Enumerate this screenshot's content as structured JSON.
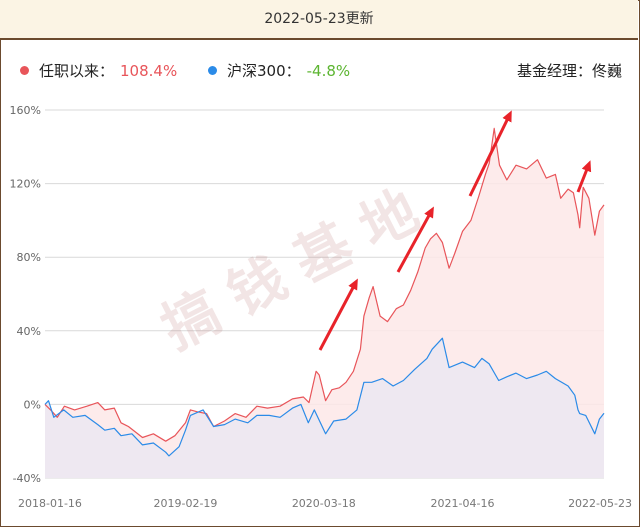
{
  "header": {
    "date_label": "2022-05-23更新"
  },
  "legend": {
    "items": [
      {
        "name": "任职以来：",
        "value": "108.4%",
        "dot_color": "#e8555a",
        "value_color": "#e8555a"
      },
      {
        "name": "沪深300：",
        "value": "-4.8%",
        "dot_color": "#2b8be8",
        "value_color": "#5cb531"
      }
    ]
  },
  "manager": {
    "label": "基金经理：",
    "name": "佟巍"
  },
  "watermark": {
    "text": "搞钱基地"
  },
  "chart_data": {
    "type": "line",
    "x_ticks": [
      "2018-01-16",
      "2019-02-19",
      "2020-03-18",
      "2021-04-16",
      "2022-05-23"
    ],
    "y_ticks": [
      "160%",
      "120%",
      "80%",
      "40%",
      "0%",
      "-40%"
    ],
    "ylim": [
      -40,
      160
    ],
    "xlim": [
      "2018-01-16",
      "2022-05-23"
    ],
    "grid": "horizontal",
    "series": [
      {
        "name": "任职以来",
        "color": "#e8555a",
        "fill": "#fde8e8",
        "points": [
          [
            "2018-01-16",
            0
          ],
          [
            "2018-02-01",
            -3
          ],
          [
            "2018-02-20",
            -7
          ],
          [
            "2018-03-12",
            -1
          ],
          [
            "2018-04-10",
            -3
          ],
          [
            "2018-05-15",
            -1
          ],
          [
            "2018-06-15",
            1
          ],
          [
            "2018-07-05",
            -3
          ],
          [
            "2018-08-01",
            -2
          ],
          [
            "2018-08-20",
            -10
          ],
          [
            "2018-09-10",
            -12
          ],
          [
            "2018-10-20",
            -18
          ],
          [
            "2018-11-20",
            -16
          ],
          [
            "2018-12-25",
            -20
          ],
          [
            "2019-01-20",
            -17
          ],
          [
            "2019-02-19",
            -10
          ],
          [
            "2019-03-05",
            -3
          ],
          [
            "2019-03-25",
            -4
          ],
          [
            "2019-04-20",
            -5
          ],
          [
            "2019-05-10",
            -12
          ],
          [
            "2019-06-10",
            -9
          ],
          [
            "2019-07-10",
            -5
          ],
          [
            "2019-08-10",
            -7
          ],
          [
            "2019-09-10",
            -1
          ],
          [
            "2019-10-10",
            -2
          ],
          [
            "2019-11-15",
            -1
          ],
          [
            "2019-12-20",
            3
          ],
          [
            "2020-01-20",
            4
          ],
          [
            "2020-02-05",
            1
          ],
          [
            "2020-02-25",
            18
          ],
          [
            "2020-03-05",
            16
          ],
          [
            "2020-03-23",
            2
          ],
          [
            "2020-04-10",
            8
          ],
          [
            "2020-05-01",
            9
          ],
          [
            "2020-05-20",
            12
          ],
          [
            "2020-06-10",
            18
          ],
          [
            "2020-06-30",
            30
          ],
          [
            "2020-07-10",
            48
          ],
          [
            "2020-07-25",
            58
          ],
          [
            "2020-08-05",
            64
          ],
          [
            "2020-08-25",
            48
          ],
          [
            "2020-09-15",
            45
          ],
          [
            "2020-10-10",
            52
          ],
          [
            "2020-10-30",
            54
          ],
          [
            "2020-11-20",
            62
          ],
          [
            "2020-12-10",
            72
          ],
          [
            "2020-12-31",
            85
          ],
          [
            "2021-01-15",
            90
          ],
          [
            "2021-02-01",
            93
          ],
          [
            "2021-02-18",
            88
          ],
          [
            "2021-03-09",
            74
          ],
          [
            "2021-03-25",
            82
          ],
          [
            "2021-04-16",
            94
          ],
          [
            "2021-05-10",
            100
          ],
          [
            "2021-06-01",
            113
          ],
          [
            "2021-06-20",
            125
          ],
          [
            "2021-07-01",
            131
          ],
          [
            "2021-07-15",
            150
          ],
          [
            "2021-07-30",
            130
          ],
          [
            "2021-08-20",
            122
          ],
          [
            "2021-09-15",
            130
          ],
          [
            "2021-10-15",
            128
          ],
          [
            "2021-11-15",
            133
          ],
          [
            "2021-12-10",
            123
          ],
          [
            "2022-01-05",
            125
          ],
          [
            "2022-01-20",
            112
          ],
          [
            "2022-02-10",
            117
          ],
          [
            "2022-02-25",
            115
          ],
          [
            "2022-03-10",
            103
          ],
          [
            "2022-03-15",
            96
          ],
          [
            "2022-03-25",
            118
          ],
          [
            "2022-04-10",
            112
          ],
          [
            "2022-04-27",
            92
          ],
          [
            "2022-05-10",
            105
          ],
          [
            "2022-05-23",
            108.4
          ]
        ]
      },
      {
        "name": "沪深300",
        "color": "#2b8be8",
        "fill": "#ece8f2",
        "points": [
          [
            "2018-01-16",
            0
          ],
          [
            "2018-01-26",
            2
          ],
          [
            "2018-02-10",
            -7
          ],
          [
            "2018-03-10",
            -3
          ],
          [
            "2018-04-05",
            -7
          ],
          [
            "2018-05-10",
            -6
          ],
          [
            "2018-06-15",
            -11
          ],
          [
            "2018-07-05",
            -14
          ],
          [
            "2018-08-01",
            -13
          ],
          [
            "2018-08-20",
            -17
          ],
          [
            "2018-09-20",
            -16
          ],
          [
            "2018-10-20",
            -22
          ],
          [
            "2018-11-20",
            -21
          ],
          [
            "2018-12-25",
            -26
          ],
          [
            "2019-01-03",
            -28
          ],
          [
            "2019-02-01",
            -23
          ],
          [
            "2019-02-19",
            -14
          ],
          [
            "2019-03-05",
            -6
          ],
          [
            "2019-04-10",
            -3
          ],
          [
            "2019-05-10",
            -12
          ],
          [
            "2019-06-10",
            -11
          ],
          [
            "2019-07-10",
            -8
          ],
          [
            "2019-08-15",
            -10
          ],
          [
            "2019-09-10",
            -6
          ],
          [
            "2019-10-15",
            -6
          ],
          [
            "2019-11-15",
            -7
          ],
          [
            "2019-12-20",
            -2
          ],
          [
            "2020-01-13",
            0
          ],
          [
            "2020-02-03",
            -10
          ],
          [
            "2020-02-20",
            -3
          ],
          [
            "2020-03-23",
            -16
          ],
          [
            "2020-04-15",
            -9
          ],
          [
            "2020-05-20",
            -8
          ],
          [
            "2020-06-20",
            -3
          ],
          [
            "2020-07-10",
            12
          ],
          [
            "2020-08-01",
            12
          ],
          [
            "2020-09-01",
            14
          ],
          [
            "2020-10-01",
            10
          ],
          [
            "2020-10-30",
            13
          ],
          [
            "2020-12-01",
            19
          ],
          [
            "2021-01-05",
            25
          ],
          [
            "2021-01-20",
            30
          ],
          [
            "2021-02-18",
            36
          ],
          [
            "2021-03-09",
            20
          ],
          [
            "2021-04-16",
            23
          ],
          [
            "2021-05-20",
            20
          ],
          [
            "2021-06-10",
            25
          ],
          [
            "2021-07-01",
            22
          ],
          [
            "2021-07-28",
            13
          ],
          [
            "2021-08-20",
            15
          ],
          [
            "2021-09-15",
            17
          ],
          [
            "2021-10-15",
            14
          ],
          [
            "2021-11-15",
            16
          ],
          [
            "2021-12-10",
            18
          ],
          [
            "2022-01-05",
            14
          ],
          [
            "2022-02-10",
            10
          ],
          [
            "2022-03-01",
            5
          ],
          [
            "2022-03-10",
            -3
          ],
          [
            "2022-03-15",
            -5
          ],
          [
            "2022-04-01",
            -6
          ],
          [
            "2022-04-27",
            -16
          ],
          [
            "2022-05-10",
            -8
          ],
          [
            "2022-05-23",
            -4.8
          ]
        ]
      }
    ]
  }
}
